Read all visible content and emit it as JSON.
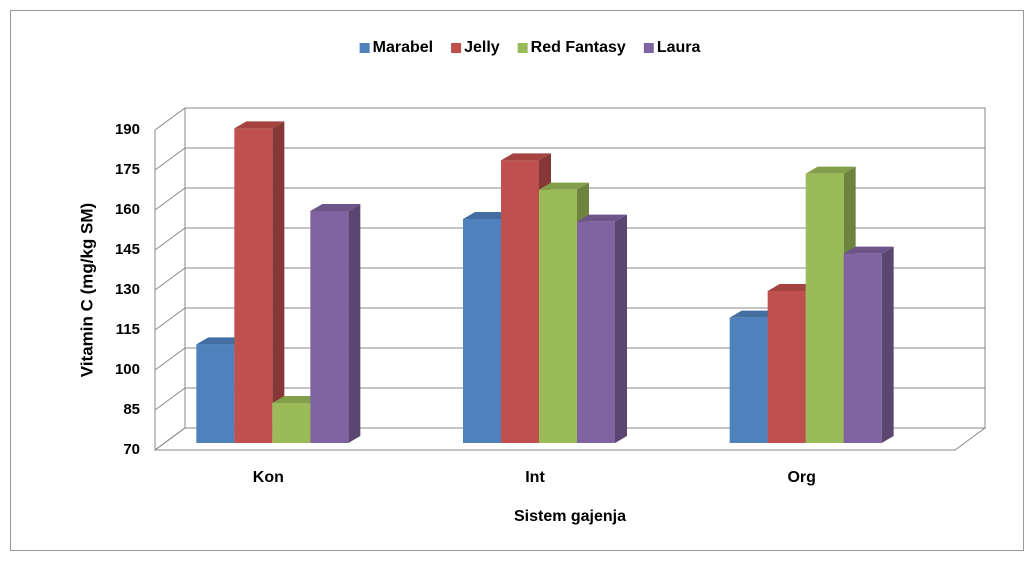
{
  "chart_data": {
    "type": "bar3d",
    "x_label": "Sistem gajenja",
    "y_label": "Vitamin C  (mg/kg SM)",
    "categories": [
      "Kon",
      "Int",
      "Org"
    ],
    "series": [
      {
        "name": "Marabel",
        "color": "#4f81bd",
        "values": [
          107,
          154,
          117
        ]
      },
      {
        "name": "Jelly",
        "color": "#c0504d",
        "values": [
          188,
          176,
          127
        ]
      },
      {
        "name": "Red Fantasy",
        "color": "#9bbb59",
        "values": [
          85,
          165,
          171
        ]
      },
      {
        "name": "Laura",
        "color": "#8064a2",
        "values": [
          157,
          153,
          141
        ]
      }
    ],
    "ylim": [
      70,
      190
    ],
    "yticks": [
      70,
      85,
      100,
      115,
      130,
      145,
      160,
      175,
      190
    ],
    "grid": true,
    "legend": "top"
  }
}
